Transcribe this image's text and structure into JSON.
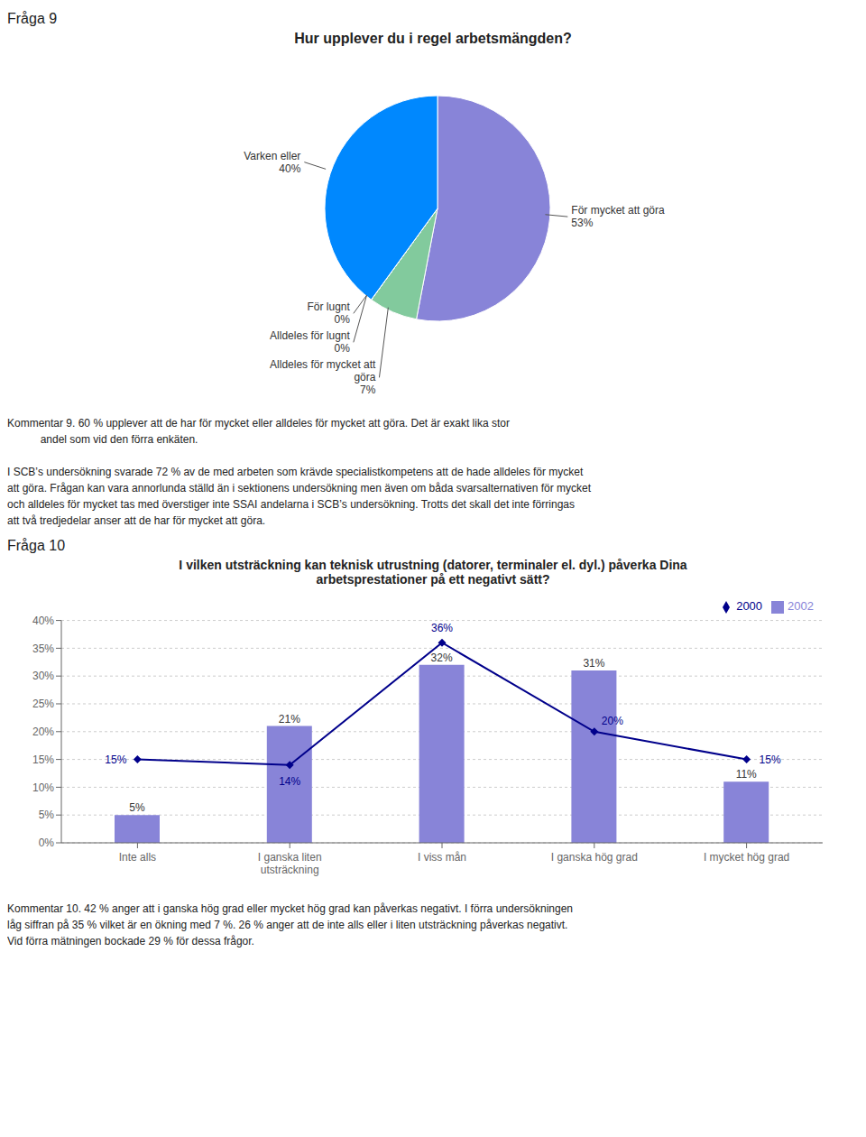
{
  "chart_data": [
    {
      "type": "pie",
      "title": "Hur upplever du i regel arbetsmängden?",
      "categories": [
        "För mycket att göra",
        "Alldeles för mycket att\ngöra",
        "Alldeles för lugnt",
        "För lugnt",
        "Varken eller"
      ],
      "values": [
        53,
        7,
        0.001,
        0.001,
        40
      ],
      "value_labels": [
        "53%",
        "7%",
        "0%",
        "0%",
        "40%"
      ],
      "colors": [
        "#8884d8",
        "#82ca9d",
        "#ffc658",
        "#ff8042",
        "#0088fe"
      ],
      "data_labels": true,
      "annotations": [
        "Fråga 9",
        "Kommentar 9. 60 % upplever att de har för mycket eller alldeles för mycket att göra. Det är exakt lika stor\n           andel som vid den förra enkäten.\n\nI SCBʼs undersökning svarade 72 % av de med arbeten som krävde specialistkompetens att de hade alldeles för mycket\natt göra. Frågan kan vara annorlunda ställd än i sektionens undersökning men även om båda svarsalternativen för mycket\noch alldeles för mycket tas med överstiger inte SSAI andelarna i SCBʼs undersökning. Trotts det skall det inte förringas\natt två tredjedelar anser att de har för mycket att göra."
      ]
    },
    {
      "type": "bar",
      "title": "I vilken utsträckning kan teknisk utrustning (datorer, terminaler el. dyl.) påverka Dina\narbetsprestationer på ett negativt sätt?",
      "categories": [
        "Inte alls",
        "I ganska liten\nutsträckning",
        "I viss mån",
        "I ganska hög grad",
        "I mycket hög grad"
      ],
      "series": [
        {
          "name": "2002",
          "type": "bar",
          "color": "#8884d8",
          "values": [
            5,
            21,
            32,
            31,
            11
          ],
          "value_labels": [
            "5%",
            "21%",
            "32%",
            "31%",
            "11%"
          ]
        },
        {
          "name": "2000",
          "type": "line",
          "color": "#00008B",
          "marker": "diamond",
          "values": [
            15,
            14,
            36,
            20,
            15
          ],
          "value_labels": [
            "15%",
            "14%",
            "36%",
            "20%",
            "15%"
          ]
        }
      ],
      "ylim": [
        0,
        40
      ],
      "yticks": [
        {
          "value": 0,
          "label": "0%"
        },
        {
          "value": 5,
          "label": "5%"
        },
        {
          "value": 10,
          "label": "10%"
        },
        {
          "value": 15,
          "label": "15%"
        },
        {
          "value": 20,
          "label": "20%"
        },
        {
          "value": 25,
          "label": "25%"
        },
        {
          "value": 30,
          "label": "30%"
        },
        {
          "value": 35,
          "label": "35%"
        },
        {
          "value": 40,
          "label": "40%"
        }
      ],
      "grid": true,
      "legend": "upper right",
      "data_labels": true,
      "annotations": [
        "Fråga 10",
        "Kommentar 10. 42 % anger att i ganska hög grad eller mycket hög grad kan påverkas negativt. I förra undersökningen\nlåg siffran på 35 % vilket är en ökning med 7 %. 26 % anger att de inte alls eller i liten utsträckning påverkas negativt.\nVid förra mätningen bockade 29 % för dessa frågor."
      ]
    }
  ]
}
